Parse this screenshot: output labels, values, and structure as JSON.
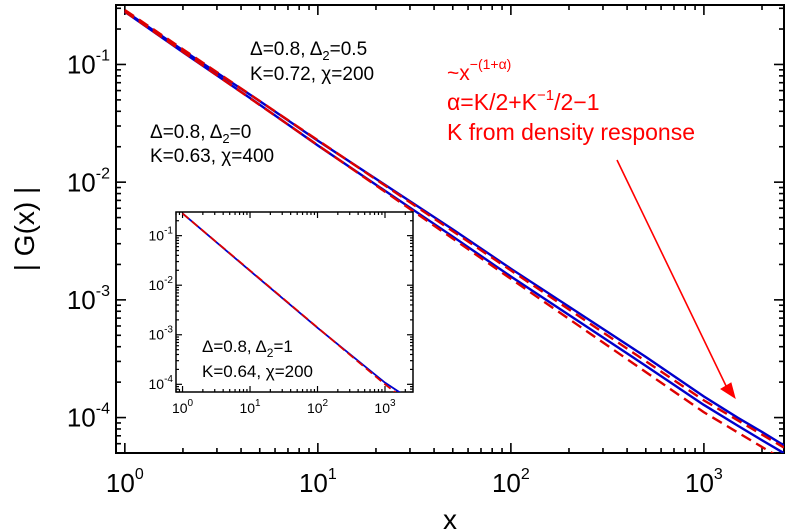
{
  "chart_data": [
    {
      "type": "line",
      "role": "main",
      "xlabel": "x",
      "ylabel": "| G(x) |",
      "xscale": "log",
      "yscale": "log",
      "xlim": [
        0.9,
        2600
      ],
      "ylim": [
        5e-05,
        0.32
      ],
      "x_ticks": [
        {
          "base": "10",
          "exp": "0"
        },
        {
          "base": "10",
          "exp": "1"
        },
        {
          "base": "10",
          "exp": "2"
        },
        {
          "base": "10",
          "exp": "3"
        }
      ],
      "y_ticks": [
        {
          "base": "10",
          "exp": "-4"
        },
        {
          "base": "10",
          "exp": "-3"
        },
        {
          "base": "10",
          "exp": "-2"
        },
        {
          "base": "10",
          "exp": "-1"
        }
      ],
      "grid": false,
      "series": [
        {
          "style": "solid",
          "color": "#0000cc",
          "x": [
            1,
            2,
            5,
            10,
            50,
            100,
            500,
            1000,
            1500,
            2000,
            2600
          ],
          "y": [
            0.28,
            0.127,
            0.0455,
            0.0205,
            0.00345,
            0.00158,
            0.000275,
            0.000128,
            8.52e-05,
            6.42e-05,
            4.98e-05
          ]
        },
        {
          "style": "solid",
          "color": "#0000cc",
          "x": [
            1,
            2,
            5,
            10,
            50,
            100,
            500,
            1000,
            1500,
            2000,
            2600
          ],
          "y": [
            0.285,
            0.132,
            0.0488,
            0.0225,
            0.00397,
            0.00184,
            0.000328,
            0.000151,
            9.95e-05,
            7.55e-05,
            5.8e-05
          ]
        },
        {
          "style": "dashed",
          "color": "#dd0000",
          "x": [
            1,
            10,
            100,
            1000,
            2600
          ],
          "y": [
            0.281,
            0.0206,
            0.00151,
            0.000111,
            4.35e-05
          ]
        },
        {
          "style": "dashed",
          "color": "#dd0000",
          "x": [
            1,
            10,
            100,
            1000,
            2600
          ],
          "y": [
            0.29,
            0.0227,
            0.00178,
            0.00014,
            5.56e-05
          ]
        }
      ],
      "annotations": [
        {
          "delta": "Δ=0.8, Δ",
          "sub": "2",
          "delta_val": "=0.5",
          "params": "K=0.72, χ=200"
        },
        {
          "delta": "Δ=0.8, Δ",
          "sub": "2",
          "delta_val": "=0",
          "params": "K=0.63, χ=400"
        }
      ],
      "formula": {
        "power_base": "~x",
        "power_exp": "−(1+α)",
        "alpha_prefix": "α=K/2+K",
        "alpha_exp": "−1",
        "alpha_suffix": "/2−1",
        "note": "K from density response"
      }
    },
    {
      "type": "line",
      "role": "inset",
      "xscale": "log",
      "yscale": "log",
      "xlim": [
        0.8,
        2600
      ],
      "ylim": [
        7e-05,
        0.3
      ],
      "x_ticks": [
        {
          "base": "10",
          "exp": "0"
        },
        {
          "base": "10",
          "exp": "1"
        },
        {
          "base": "10",
          "exp": "2"
        },
        {
          "base": "10",
          "exp": "3"
        }
      ],
      "y_ticks": [
        {
          "base": "10",
          "exp": "-4"
        },
        {
          "base": "10",
          "exp": "-3"
        },
        {
          "base": "10",
          "exp": "-2"
        },
        {
          "base": "10",
          "exp": "-1"
        }
      ],
      "grid": false,
      "series": [
        {
          "style": "solid",
          "color": "#0000cc",
          "x": [
            1,
            10,
            100,
            1000,
            2000
          ],
          "y": [
            0.28,
            0.0195,
            0.00138,
            0.000108,
            5.8e-05
          ]
        },
        {
          "style": "dashed",
          "color": "#dd0000",
          "x": [
            1,
            10,
            100,
            1000,
            2000
          ],
          "y": [
            0.28,
            0.0198,
            0.0014,
            0.0001,
            4.8e-05
          ]
        }
      ],
      "annotation": {
        "delta": "Δ=0.8, Δ",
        "sub": "2",
        "delta_val": "=1",
        "params": "K=0.64, χ=200"
      }
    }
  ]
}
